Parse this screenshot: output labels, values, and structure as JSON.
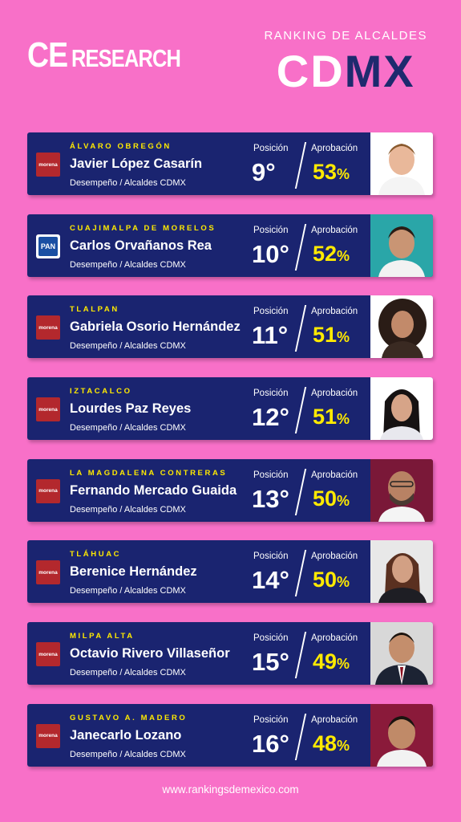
{
  "header": {
    "logo_ce": "CE",
    "logo_rest": "RESEARCH",
    "kicker": "RANKING DE ALCALDES",
    "city_light": "CD",
    "city_dark": "MX"
  },
  "labels": {
    "position": "Posición",
    "approval": "Aprobación"
  },
  "cards": [
    {
      "alcaldia": "ÁLVARO OBREGÓN",
      "name": "Javier López Casarín",
      "desc": "Desempeño / Alcaldes CDMX",
      "party": "morena",
      "position": "9°",
      "approval": "53",
      "photo_bg": "#ffffff"
    },
    {
      "alcaldia": "CUAJIMALPA DE MORELOS",
      "name": "Carlos Orvañanos Rea",
      "desc": "Desempeño / Alcaldes CDMX",
      "party": "PAN",
      "position": "10°",
      "approval": "52",
      "photo_bg": "#2aa6a8"
    },
    {
      "alcaldia": "TLALPAN",
      "name": "Gabriela Osorio Hernández",
      "desc": "Desempeño / Alcaldes CDMX",
      "party": "morena",
      "position": "11°",
      "approval": "51",
      "photo_bg": "#ffffff"
    },
    {
      "alcaldia": "IZTACALCO",
      "name": "Lourdes Paz Reyes",
      "desc": "Desempeño / Alcaldes CDMX",
      "party": "morena",
      "position": "12°",
      "approval": "51",
      "photo_bg": "#ffffff"
    },
    {
      "alcaldia": "LA MAGDALENA CONTRERAS",
      "name": "Fernando Mercado Guaida",
      "desc": "Desempeño / Alcaldes CDMX",
      "party": "morena",
      "position": "13°",
      "approval": "50",
      "photo_bg": "#7a1838"
    },
    {
      "alcaldia": "TLÁHUAC",
      "name": "Berenice Hernández",
      "desc": "Desempeño / Alcaldes CDMX",
      "party": "morena",
      "position": "14°",
      "approval": "50",
      "photo_bg": "#e8e8e8"
    },
    {
      "alcaldia": "MILPA ALTA",
      "name": "Octavio Rivero Villaseñor",
      "desc": "Desempeño / Alcaldes CDMX",
      "party": "morena",
      "position": "15°",
      "approval": "49",
      "photo_bg": "#d8d8d8"
    },
    {
      "alcaldia": "GUSTAVO A. MADERO",
      "name": "Janecarlo Lozano",
      "desc": "Desempeño / Alcaldes CDMX",
      "party": "morena",
      "position": "16°",
      "approval": "48",
      "photo_bg": "#8a1a3a"
    }
  ],
  "footer": "www.rankingsdemexico.com",
  "colors": {
    "background": "#f870c8",
    "card": "#1a2470",
    "accent": "#ffea00"
  }
}
